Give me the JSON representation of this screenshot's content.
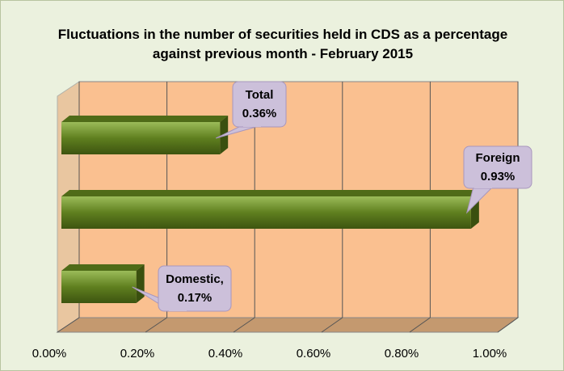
{
  "chart_data": {
    "type": "bar",
    "orientation": "horizontal",
    "title": "Fluctuations in the number of securities held in CDS as a percentage against previous month - February 2015",
    "categories": [
      "Total",
      "Foreign",
      "Domestic,"
    ],
    "values": [
      0.36,
      0.93,
      0.17
    ],
    "value_labels": [
      "0.36%",
      "0.93%",
      "0.17%"
    ],
    "color": "#6b8e23",
    "xlim": [
      0,
      1
    ],
    "xticks": [
      {
        "value": 0,
        "label": "0.00%"
      },
      {
        "value": 0.2,
        "label": "0.20%"
      },
      {
        "value": 0.4,
        "label": "0.40%"
      },
      {
        "value": 0.6,
        "label": "0.60%"
      },
      {
        "value": 0.8,
        "label": "0.80%"
      },
      {
        "value": 1,
        "label": "1.00%"
      }
    ],
    "grid": true
  }
}
